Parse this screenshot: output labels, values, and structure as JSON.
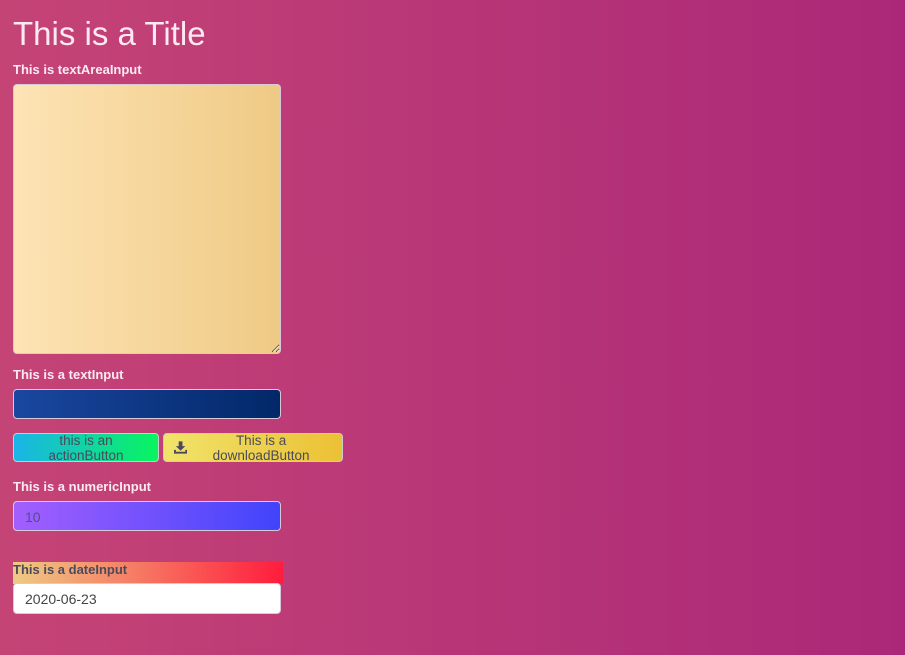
{
  "title": "This is a Title",
  "textarea": {
    "label": "This is textAreaInput",
    "value": ""
  },
  "text_input": {
    "label": "This is a textInput",
    "value": ""
  },
  "action_button": {
    "label": "this is an actionButton"
  },
  "download_button": {
    "label": "This is a downloadButton",
    "icon": "download-icon"
  },
  "numeric_input": {
    "label": "This is a numericInput",
    "value": "10"
  },
  "date_input": {
    "label": "This is a dateInput",
    "value": "2020-06-23"
  }
}
